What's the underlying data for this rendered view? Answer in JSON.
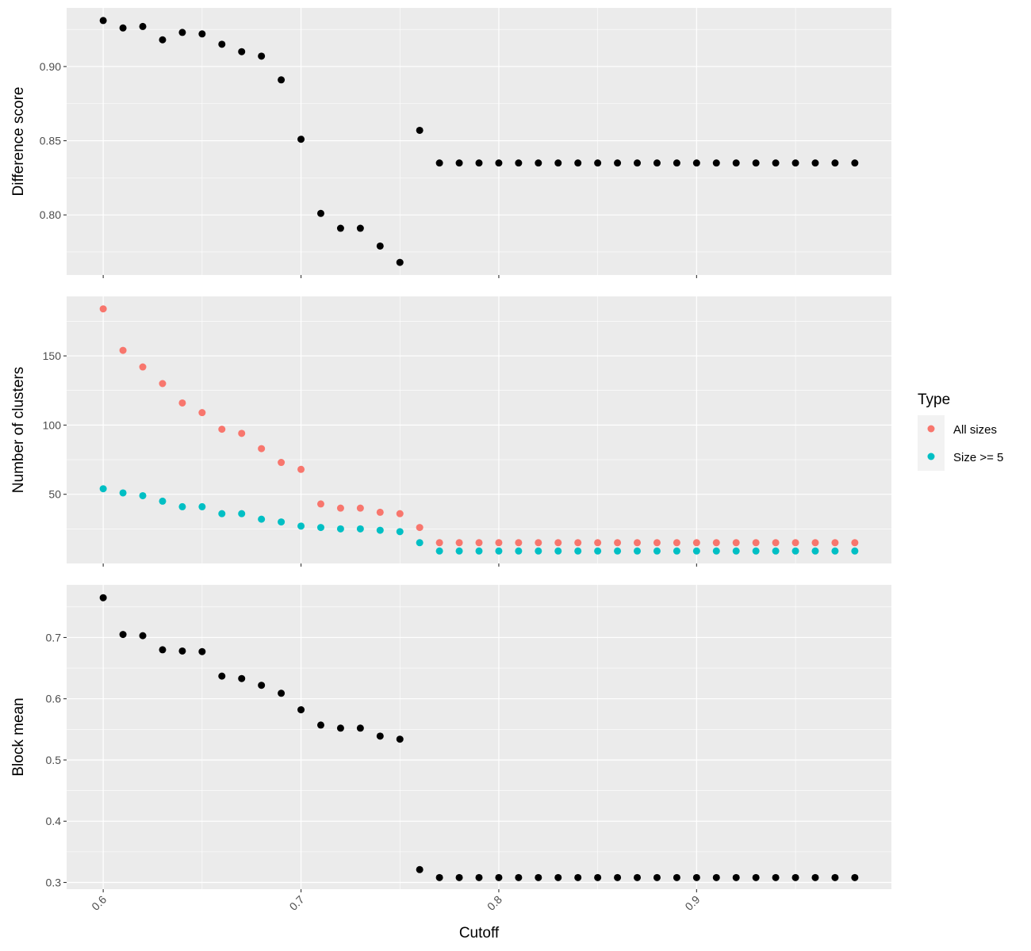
{
  "chart_data": {
    "type": "scatter",
    "xlabel": "Cutoff",
    "x_ticks": [
      0.6,
      0.7,
      0.8,
      0.9
    ],
    "x_tick_labels": [
      "0.6",
      "0.7",
      "0.8",
      "0.9"
    ],
    "xlim": [
      0.5815,
      0.9985
    ],
    "grid": true,
    "legend": {
      "title": "Type",
      "placement": "right",
      "entries": [
        {
          "label": "All sizes",
          "color": "#f8766d"
        },
        {
          "label": "Size >= 5",
          "color": "#00bfc4"
        }
      ]
    },
    "panels": [
      {
        "ylabel": "Difference score",
        "ylim": [
          0.7595,
          0.9395
        ],
        "y_ticks": [
          0.8,
          0.85,
          0.9
        ],
        "y_tick_labels": [
          "0.80",
          "0.85",
          "0.90"
        ],
        "series": [
          {
            "color": "#000000",
            "x": [
              0.6,
              0.61,
              0.62,
              0.63,
              0.64,
              0.65,
              0.66,
              0.67,
              0.68,
              0.69,
              0.7,
              0.71,
              0.72,
              0.73,
              0.74,
              0.75,
              0.76,
              0.77,
              0.78,
              0.79,
              0.8,
              0.81,
              0.82,
              0.83,
              0.84,
              0.85,
              0.86,
              0.87,
              0.88,
              0.89,
              0.9,
              0.91,
              0.92,
              0.93,
              0.94,
              0.95,
              0.96,
              0.97,
              0.98
            ],
            "values": [
              0.931,
              0.926,
              0.927,
              0.918,
              0.923,
              0.922,
              0.915,
              0.91,
              0.907,
              0.891,
              0.851,
              0.801,
              0.791,
              0.791,
              0.779,
              0.768,
              0.857,
              0.835,
              0.835,
              0.835,
              0.835,
              0.835,
              0.835,
              0.835,
              0.835,
              0.835,
              0.835,
              0.835,
              0.835,
              0.835,
              0.835,
              0.835,
              0.835,
              0.835,
              0.835,
              0.835,
              0.835,
              0.835,
              0.835
            ]
          }
        ]
      },
      {
        "ylabel": "Number of clusters",
        "ylim": [
          0,
          193
        ],
        "y_ticks": [
          50,
          100,
          150
        ],
        "y_tick_labels": [
          "50",
          "100",
          "150"
        ],
        "series": [
          {
            "name": "All sizes",
            "color": "#f8766d",
            "x": [
              0.6,
              0.61,
              0.62,
              0.63,
              0.64,
              0.65,
              0.66,
              0.67,
              0.68,
              0.69,
              0.7,
              0.71,
              0.72,
              0.73,
              0.74,
              0.75,
              0.76,
              0.77,
              0.78,
              0.79,
              0.8,
              0.81,
              0.82,
              0.83,
              0.84,
              0.85,
              0.86,
              0.87,
              0.88,
              0.89,
              0.9,
              0.91,
              0.92,
              0.93,
              0.94,
              0.95,
              0.96,
              0.97,
              0.98
            ],
            "values": [
              184,
              154,
              142,
              130,
              116,
              109,
              97,
              94,
              83,
              73,
              68,
              43,
              40,
              40,
              37,
              36,
              26,
              15,
              15,
              15,
              15,
              15,
              15,
              15,
              15,
              15,
              15,
              15,
              15,
              15,
              15,
              15,
              15,
              15,
              15,
              15,
              15,
              15,
              15
            ]
          },
          {
            "name": "Size >= 5",
            "color": "#00bfc4",
            "x": [
              0.6,
              0.61,
              0.62,
              0.63,
              0.64,
              0.65,
              0.66,
              0.67,
              0.68,
              0.69,
              0.7,
              0.71,
              0.72,
              0.73,
              0.74,
              0.75,
              0.76,
              0.77,
              0.78,
              0.79,
              0.8,
              0.81,
              0.82,
              0.83,
              0.84,
              0.85,
              0.86,
              0.87,
              0.88,
              0.89,
              0.9,
              0.91,
              0.92,
              0.93,
              0.94,
              0.95,
              0.96,
              0.97,
              0.98
            ],
            "values": [
              54,
              51,
              49,
              45,
              41,
              41,
              36,
              36,
              32,
              30,
              27,
              26,
              25,
              25,
              24,
              23,
              15,
              9,
              9,
              9,
              9,
              9,
              9,
              9,
              9,
              9,
              9,
              9,
              9,
              9,
              9,
              9,
              9,
              9,
              9,
              9,
              9,
              9,
              9
            ]
          }
        ]
      },
      {
        "ylabel": "Block mean",
        "ylim": [
          0.289,
          0.786
        ],
        "y_ticks": [
          0.3,
          0.4,
          0.5,
          0.6,
          0.7
        ],
        "y_tick_labels": [
          "0.3",
          "0.4",
          "0.5",
          "0.6",
          "0.7"
        ],
        "series": [
          {
            "color": "#000000",
            "x": [
              0.6,
              0.61,
              0.62,
              0.63,
              0.64,
              0.65,
              0.66,
              0.67,
              0.68,
              0.69,
              0.7,
              0.71,
              0.72,
              0.73,
              0.74,
              0.75,
              0.76,
              0.77,
              0.78,
              0.79,
              0.8,
              0.81,
              0.82,
              0.83,
              0.84,
              0.85,
              0.86,
              0.87,
              0.88,
              0.89,
              0.9,
              0.91,
              0.92,
              0.93,
              0.94,
              0.95,
              0.96,
              0.97,
              0.98
            ],
            "values": [
              0.765,
              0.705,
              0.703,
              0.68,
              0.678,
              0.677,
              0.637,
              0.633,
              0.622,
              0.609,
              0.582,
              0.557,
              0.552,
              0.552,
              0.539,
              0.534,
              0.321,
              0.308,
              0.308,
              0.308,
              0.308,
              0.308,
              0.308,
              0.308,
              0.308,
              0.308,
              0.308,
              0.308,
              0.308,
              0.308,
              0.308,
              0.308,
              0.308,
              0.308,
              0.308,
              0.308,
              0.308,
              0.308,
              0.308
            ]
          }
        ]
      }
    ]
  }
}
